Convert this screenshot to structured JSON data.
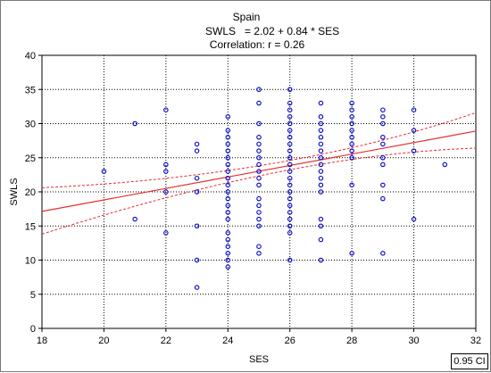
{
  "chart_data": {
    "type": "scatter",
    "title": "Spain",
    "equation_label": "SWLS",
    "equation": "= 2.02 + 0.84 * SES",
    "correlation": "Correlation: r = 0.26",
    "xlabel": "SES",
    "ylabel": "SWLS",
    "xlim": [
      18,
      32
    ],
    "ylim": [
      0,
      40
    ],
    "x_ticks": [
      18,
      20,
      22,
      24,
      26,
      28,
      30,
      32
    ],
    "y_ticks": [
      0,
      5,
      10,
      15,
      20,
      25,
      30,
      35,
      40
    ],
    "grid": true,
    "ci_label": "0.95 CI",
    "point_color": "#0000cc",
    "line_color": "#e62e2e",
    "regression": {
      "intercept": 2.02,
      "slope": 0.84
    },
    "ci_band": {
      "x": [
        18,
        25.5,
        32
      ],
      "upper": [
        20.6,
        24.2,
        31.6
      ],
      "lower": [
        13.8,
        22.8,
        26.4
      ]
    },
    "points": [
      [
        20,
        23
      ],
      [
        21,
        30
      ],
      [
        21,
        16
      ],
      [
        22,
        32
      ],
      [
        22,
        24
      ],
      [
        22,
        23
      ],
      [
        22,
        20
      ],
      [
        22,
        14
      ],
      [
        23,
        27
      ],
      [
        23,
        26
      ],
      [
        23,
        22
      ],
      [
        23,
        20
      ],
      [
        23,
        15
      ],
      [
        23,
        10
      ],
      [
        23,
        6
      ],
      [
        24,
        31
      ],
      [
        24,
        29
      ],
      [
        24,
        28
      ],
      [
        24,
        27
      ],
      [
        24,
        26
      ],
      [
        24,
        25
      ],
      [
        24,
        24
      ],
      [
        24,
        23
      ],
      [
        24,
        22
      ],
      [
        24,
        21
      ],
      [
        24,
        20
      ],
      [
        24,
        19
      ],
      [
        24,
        18
      ],
      [
        24,
        17
      ],
      [
        24,
        16
      ],
      [
        24,
        14
      ],
      [
        24,
        13
      ],
      [
        24,
        12
      ],
      [
        24,
        11
      ],
      [
        24,
        10
      ],
      [
        24,
        9
      ],
      [
        25,
        35
      ],
      [
        25,
        33
      ],
      [
        25,
        30
      ],
      [
        25,
        28
      ],
      [
        25,
        27
      ],
      [
        25,
        26
      ],
      [
        25,
        25
      ],
      [
        25,
        24
      ],
      [
        25,
        23
      ],
      [
        25,
        22
      ],
      [
        25,
        21
      ],
      [
        25,
        19
      ],
      [
        25,
        18
      ],
      [
        25,
        17
      ],
      [
        25,
        16
      ],
      [
        25,
        15
      ],
      [
        25,
        12
      ],
      [
        25,
        11
      ],
      [
        26,
        35
      ],
      [
        26,
        33
      ],
      [
        26,
        32
      ],
      [
        26,
        31
      ],
      [
        26,
        30
      ],
      [
        26,
        29
      ],
      [
        26,
        28
      ],
      [
        26,
        27
      ],
      [
        26,
        26
      ],
      [
        26,
        25
      ],
      [
        26,
        24
      ],
      [
        26,
        23
      ],
      [
        26,
        22
      ],
      [
        26,
        21
      ],
      [
        26,
        20
      ],
      [
        26,
        19
      ],
      [
        26,
        18
      ],
      [
        26,
        17
      ],
      [
        26,
        16
      ],
      [
        26,
        15
      ],
      [
        26,
        14
      ],
      [
        26,
        10
      ],
      [
        27,
        33
      ],
      [
        27,
        31
      ],
      [
        27,
        30
      ],
      [
        27,
        29
      ],
      [
        27,
        28
      ],
      [
        27,
        27
      ],
      [
        27,
        26
      ],
      [
        27,
        25
      ],
      [
        27,
        24
      ],
      [
        27,
        23
      ],
      [
        27,
        22
      ],
      [
        27,
        21
      ],
      [
        27,
        20
      ],
      [
        27,
        16
      ],
      [
        27,
        15
      ],
      [
        27,
        13
      ],
      [
        27,
        10
      ],
      [
        28,
        33
      ],
      [
        28,
        32
      ],
      [
        28,
        31
      ],
      [
        28,
        30
      ],
      [
        28,
        29
      ],
      [
        28,
        28
      ],
      [
        28,
        27
      ],
      [
        28,
        26
      ],
      [
        28,
        25
      ],
      [
        28,
        21
      ],
      [
        28,
        11
      ],
      [
        29,
        32
      ],
      [
        29,
        31
      ],
      [
        29,
        30
      ],
      [
        29,
        28
      ],
      [
        29,
        27
      ],
      [
        29,
        25
      ],
      [
        29,
        24
      ],
      [
        29,
        21
      ],
      [
        29,
        19
      ],
      [
        29,
        11
      ],
      [
        30,
        32
      ],
      [
        30,
        29
      ],
      [
        30,
        26
      ],
      [
        30,
        16
      ],
      [
        31,
        24
      ]
    ]
  }
}
